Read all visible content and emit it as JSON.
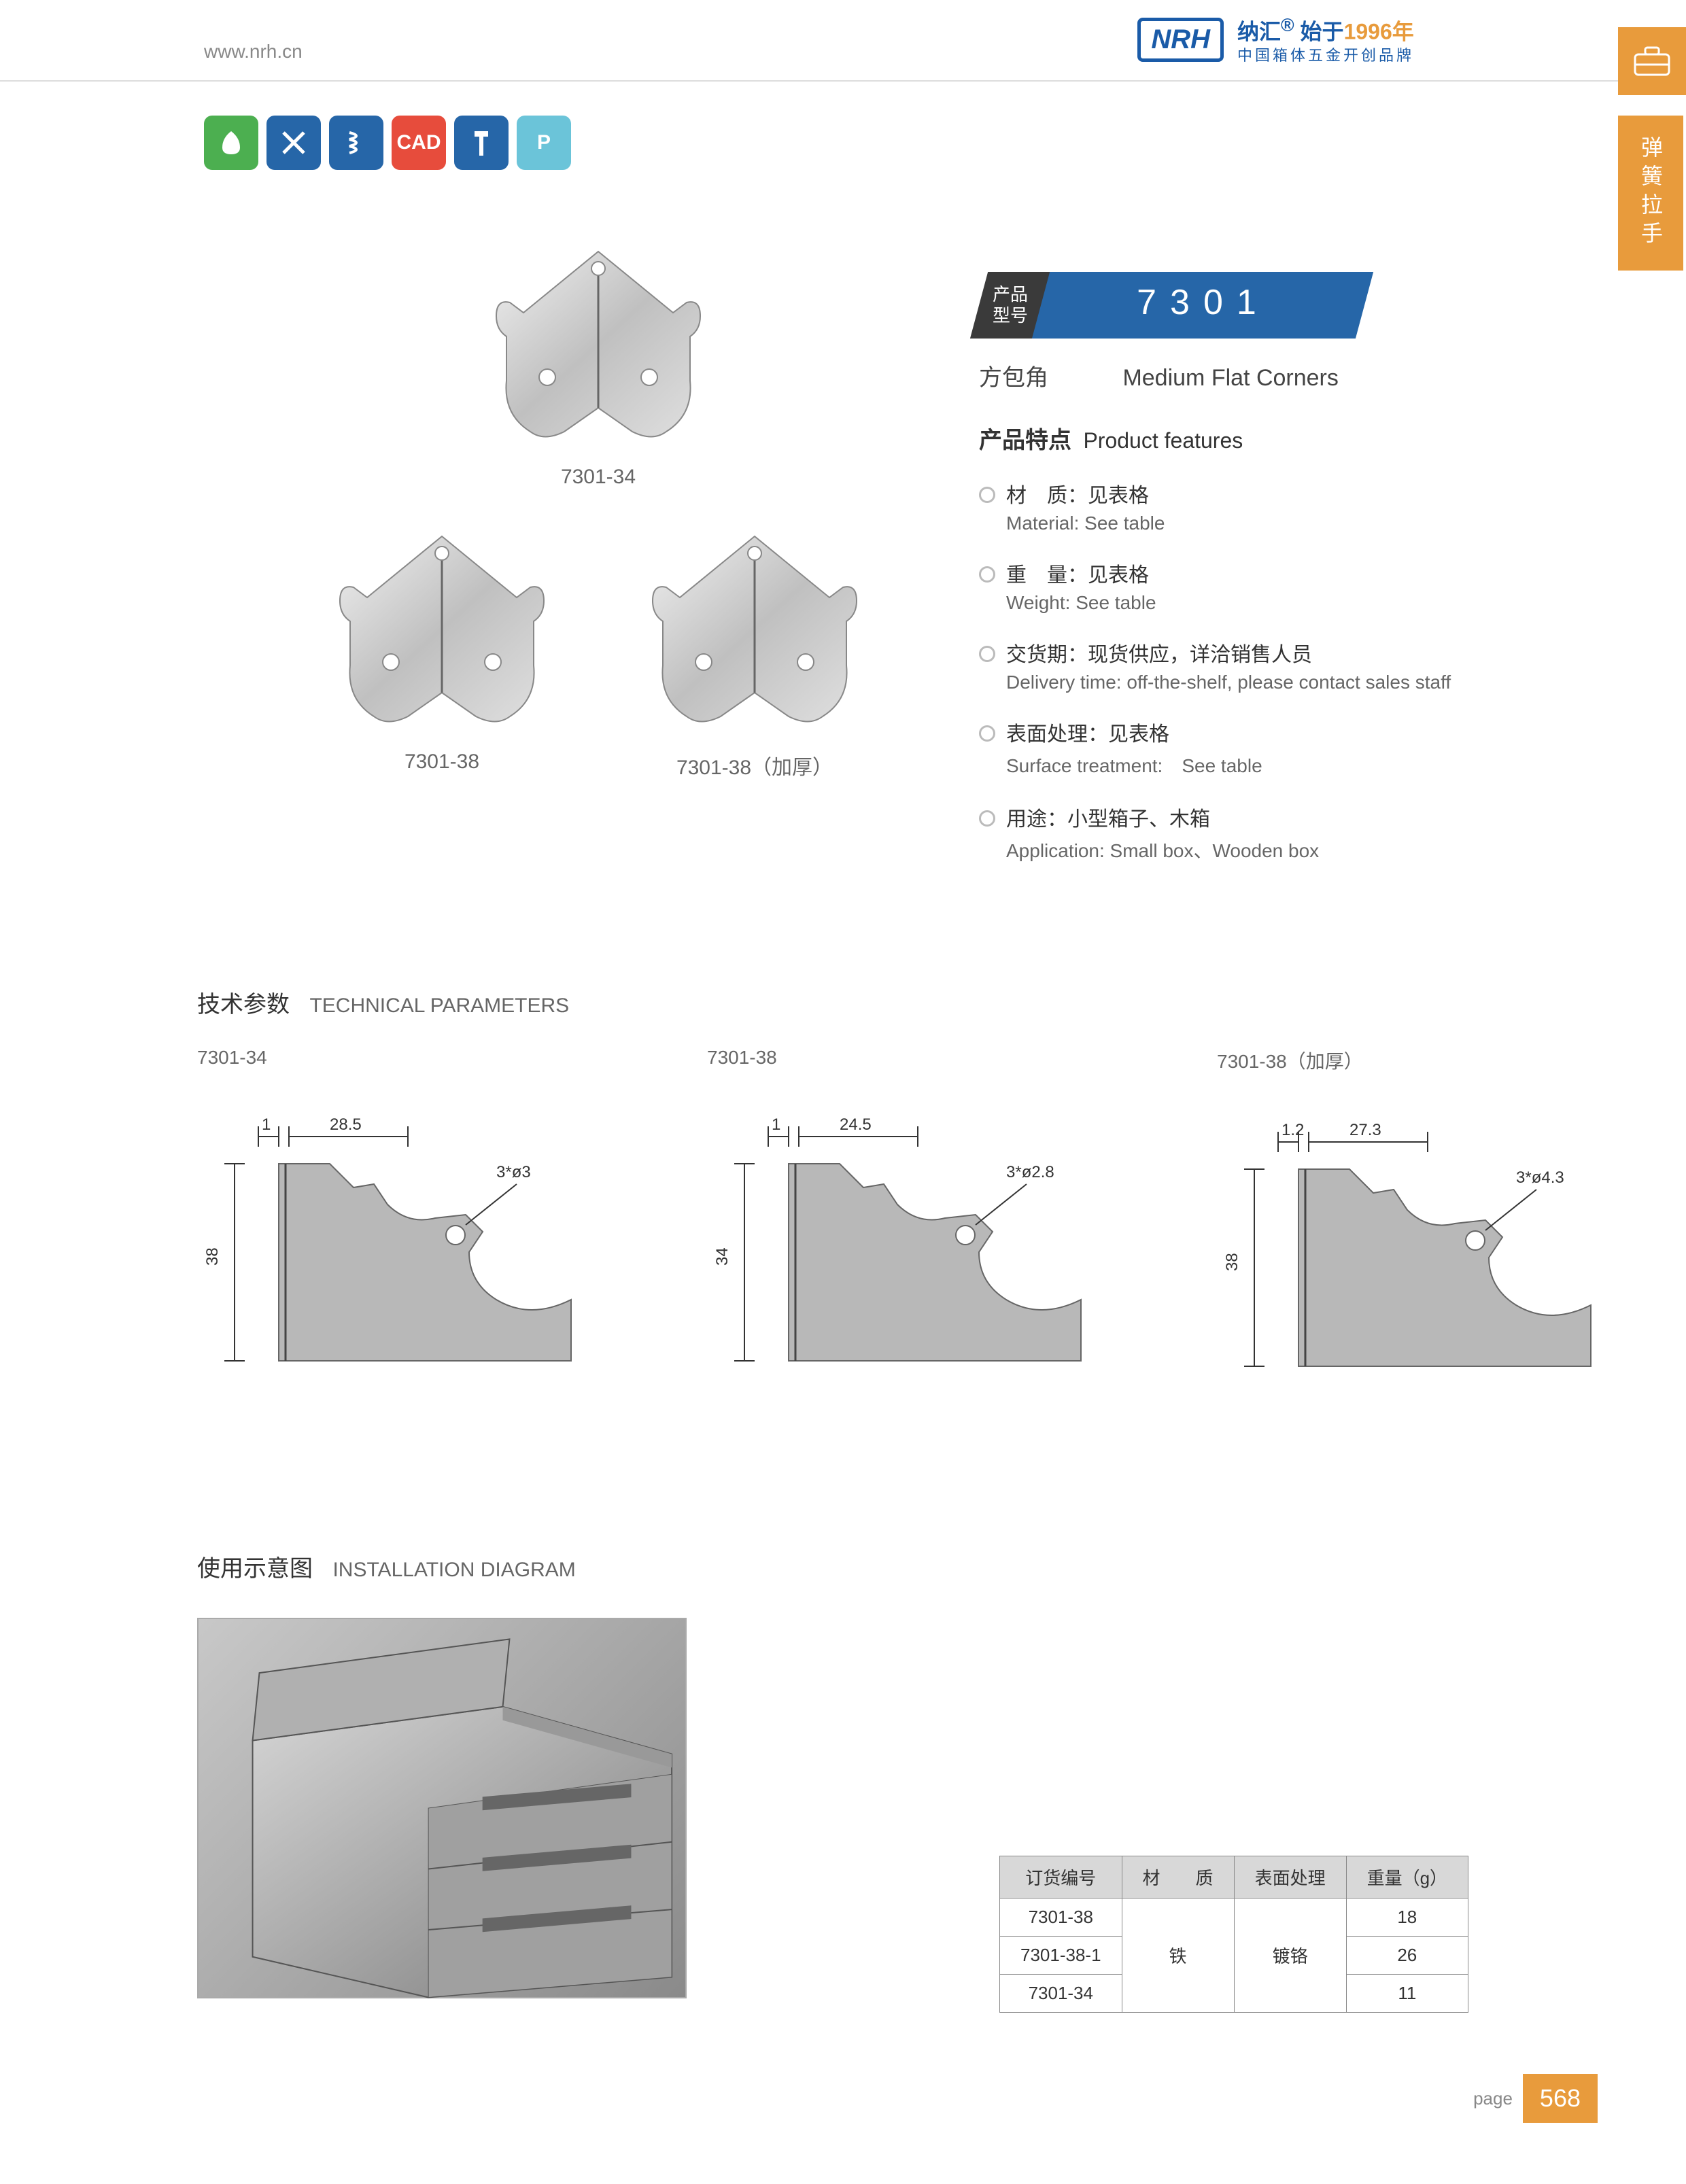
{
  "header": {
    "url": "www.nrh.cn",
    "logo": "NRH",
    "brand_cn": "纳汇",
    "brand_since": "始于",
    "brand_year": "1996年",
    "brand_tagline": "中国箱体五金开创品牌"
  },
  "side_tab": "弹簧拉手",
  "icon_badges": [
    {
      "bg": "#4caf50",
      "label": "eco"
    },
    {
      "bg": "#2666a8",
      "label": "tools"
    },
    {
      "bg": "#2666a8",
      "label": "spring"
    },
    {
      "bg": "#e74c3c",
      "label": "CAD"
    },
    {
      "bg": "#2666a8",
      "label": "screw"
    },
    {
      "bg": "#6bc4d9",
      "label": "P"
    }
  ],
  "products": {
    "row1": [
      {
        "caption": "7301-34"
      }
    ],
    "row2": [
      {
        "caption": "7301-38"
      },
      {
        "caption": "7301-38（加厚）"
      }
    ]
  },
  "code": {
    "label": "产品\n型号",
    "number": "7301",
    "name_cn": "方包角",
    "name_en": "Medium Flat Corners"
  },
  "features": {
    "title_cn": "产品特点",
    "title_en": "Product features",
    "items": [
      {
        "cn": "材　质：见表格",
        "en": "Material: See table"
      },
      {
        "cn": "重　量：见表格",
        "en": "Weight: See table"
      },
      {
        "cn": "交货期：现货供应，详洽销售人员",
        "en": "Delivery time: off-the-shelf, please contact sales staff"
      },
      {
        "cn": "表面处理：见表格",
        "en": "Surface treatment:　See table"
      },
      {
        "cn": "用途：小型箱子、木箱",
        "en": "Application: Small box、Wooden box"
      }
    ]
  },
  "tech": {
    "title_cn": "技术参数",
    "title_en": "TECHNICAL PARAMETERS",
    "diagrams": [
      {
        "label": "7301-34",
        "t": "1",
        "w": "28.5",
        "h": "38",
        "hole": "3*ø3"
      },
      {
        "label": "7301-38",
        "t": "1",
        "w": "24.5",
        "h": "34",
        "hole": "3*ø2.8"
      },
      {
        "label": "7301-38（加厚）",
        "t": "1.2",
        "w": "27.3",
        "h": "38",
        "hole": "3*ø4.3"
      }
    ]
  },
  "install": {
    "title_cn": "使用示意图",
    "title_en": "INSTALLATION DIAGRAM"
  },
  "spec_table": {
    "headers": [
      "订货编号",
      "材　　质",
      "表面处理",
      "重量（g）"
    ],
    "material": "铁",
    "surface": "镀铬",
    "rows": [
      {
        "code": "7301-38",
        "weight": "18"
      },
      {
        "code": "7301-38-1",
        "weight": "26"
      },
      {
        "code": "7301-34",
        "weight": "11"
      }
    ]
  },
  "footer": {
    "label": "page",
    "number": "568"
  },
  "colors": {
    "primary_blue": "#2666a8",
    "accent_orange": "#e89b3c",
    "diagram_fill": "#b8b8b8"
  }
}
